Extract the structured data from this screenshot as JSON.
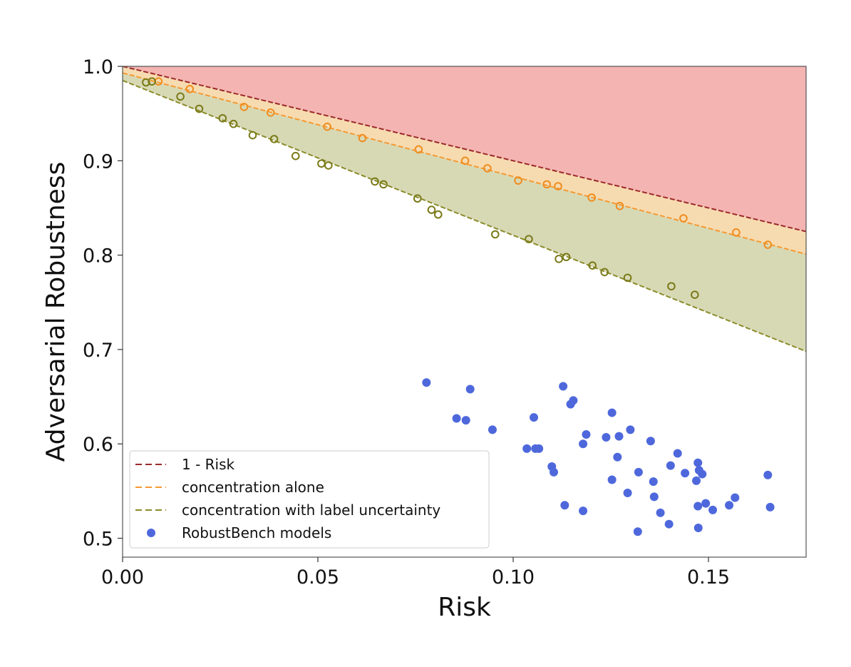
{
  "chart_data": {
    "type": "scatter",
    "xlabel": "Risk",
    "ylabel": "Adversarial Robustness",
    "xlim": [
      0,
      0.175
    ],
    "ylim": [
      0.48,
      1.0
    ],
    "xticks": [
      "0.00",
      "0.05",
      "0.10",
      "0.15"
    ],
    "xtick_values": [
      0,
      0.05,
      0.1,
      0.15
    ],
    "yticks": [
      "0.5",
      "0.6",
      "0.7",
      "0.8",
      "0.9",
      "1.0"
    ],
    "ytick_values": [
      0.5,
      0.6,
      0.7,
      0.8,
      0.9,
      1.0
    ],
    "grid": false,
    "legend_position": "lower-left",
    "lines": [
      {
        "name": "1 - Risk",
        "color": "#9b2a2a",
        "fill": "#f4b4b2",
        "style": "dashed",
        "x": [
          0,
          0.175
        ],
        "y": [
          1.0,
          0.825
        ]
      },
      {
        "name": "concentration alone",
        "color": "#f59a33",
        "fill": "#f7dbb0",
        "style": "dashed",
        "x": [
          0,
          0.175
        ],
        "y": [
          0.993,
          0.801
        ]
      },
      {
        "name": "concentration with label uncertainty",
        "color": "#8b8b2a",
        "fill": "#d7d9b5",
        "style": "dashed",
        "x": [
          0,
          0.175
        ],
        "y": [
          0.985,
          0.698
        ]
      }
    ],
    "open_points": [
      {
        "color": "#f08c1e",
        "x": [
          0.0092,
          0.0172,
          0.0311,
          0.0379,
          0.0524,
          0.0614,
          0.0758,
          0.0877,
          0.0934,
          0.1013,
          0.1086,
          0.1115,
          0.1201,
          0.1273,
          0.1436,
          0.1571,
          0.1652
        ],
        "y": [
          0.984,
          0.976,
          0.957,
          0.951,
          0.936,
          0.924,
          0.912,
          0.9,
          0.892,
          0.879,
          0.875,
          0.873,
          0.861,
          0.852,
          0.839,
          0.824,
          0.811
        ]
      },
      {
        "color": "#7a7a18",
        "x": [
          0.006,
          0.0075,
          0.0148,
          0.0196,
          0.0256,
          0.0284,
          0.0333,
          0.0388,
          0.0443,
          0.0509,
          0.0527,
          0.0646,
          0.0668,
          0.0755,
          0.0791,
          0.0808,
          0.0954,
          0.104,
          0.1117,
          0.1136,
          0.1203,
          0.1234,
          0.1293,
          0.1405,
          0.1465
        ],
        "y": [
          0.983,
          0.984,
          0.968,
          0.955,
          0.945,
          0.939,
          0.927,
          0.923,
          0.905,
          0.897,
          0.895,
          0.878,
          0.875,
          0.86,
          0.848,
          0.843,
          0.822,
          0.817,
          0.796,
          0.798,
          0.789,
          0.782,
          0.776,
          0.767,
          0.758
        ]
      }
    ],
    "series": [
      {
        "name": "RobustBench models",
        "color": "#4e68dc",
        "x": [
          0.0778,
          0.0855,
          0.0879,
          0.089,
          0.0947,
          0.1035,
          0.1053,
          0.1057,
          0.1066,
          0.1099,
          0.1104,
          0.1128,
          0.1132,
          0.1147,
          0.1154,
          0.1179,
          0.1179,
          0.1187,
          0.1238,
          0.1253,
          0.1253,
          0.1271,
          0.1267,
          0.1293,
          0.13,
          0.1321,
          0.1319,
          0.1352,
          0.1359,
          0.1361,
          0.1377,
          0.1399,
          0.1403,
          0.1421,
          0.144,
          0.1469,
          0.1473,
          0.1473,
          0.1474,
          0.1476,
          0.1484,
          0.1493,
          0.1511,
          0.1553,
          0.1568,
          0.1652,
          0.1658
        ],
        "y": [
          0.665,
          0.627,
          0.625,
          0.658,
          0.615,
          0.595,
          0.628,
          0.595,
          0.595,
          0.576,
          0.57,
          0.661,
          0.535,
          0.642,
          0.646,
          0.529,
          0.6,
          0.61,
          0.607,
          0.633,
          0.562,
          0.608,
          0.586,
          0.548,
          0.615,
          0.57,
          0.507,
          0.603,
          0.56,
          0.544,
          0.527,
          0.515,
          0.577,
          0.59,
          0.569,
          0.561,
          0.58,
          0.534,
          0.511,
          0.572,
          0.568,
          0.537,
          0.53,
          0.535,
          0.543,
          0.567,
          0.533
        ]
      }
    ]
  }
}
